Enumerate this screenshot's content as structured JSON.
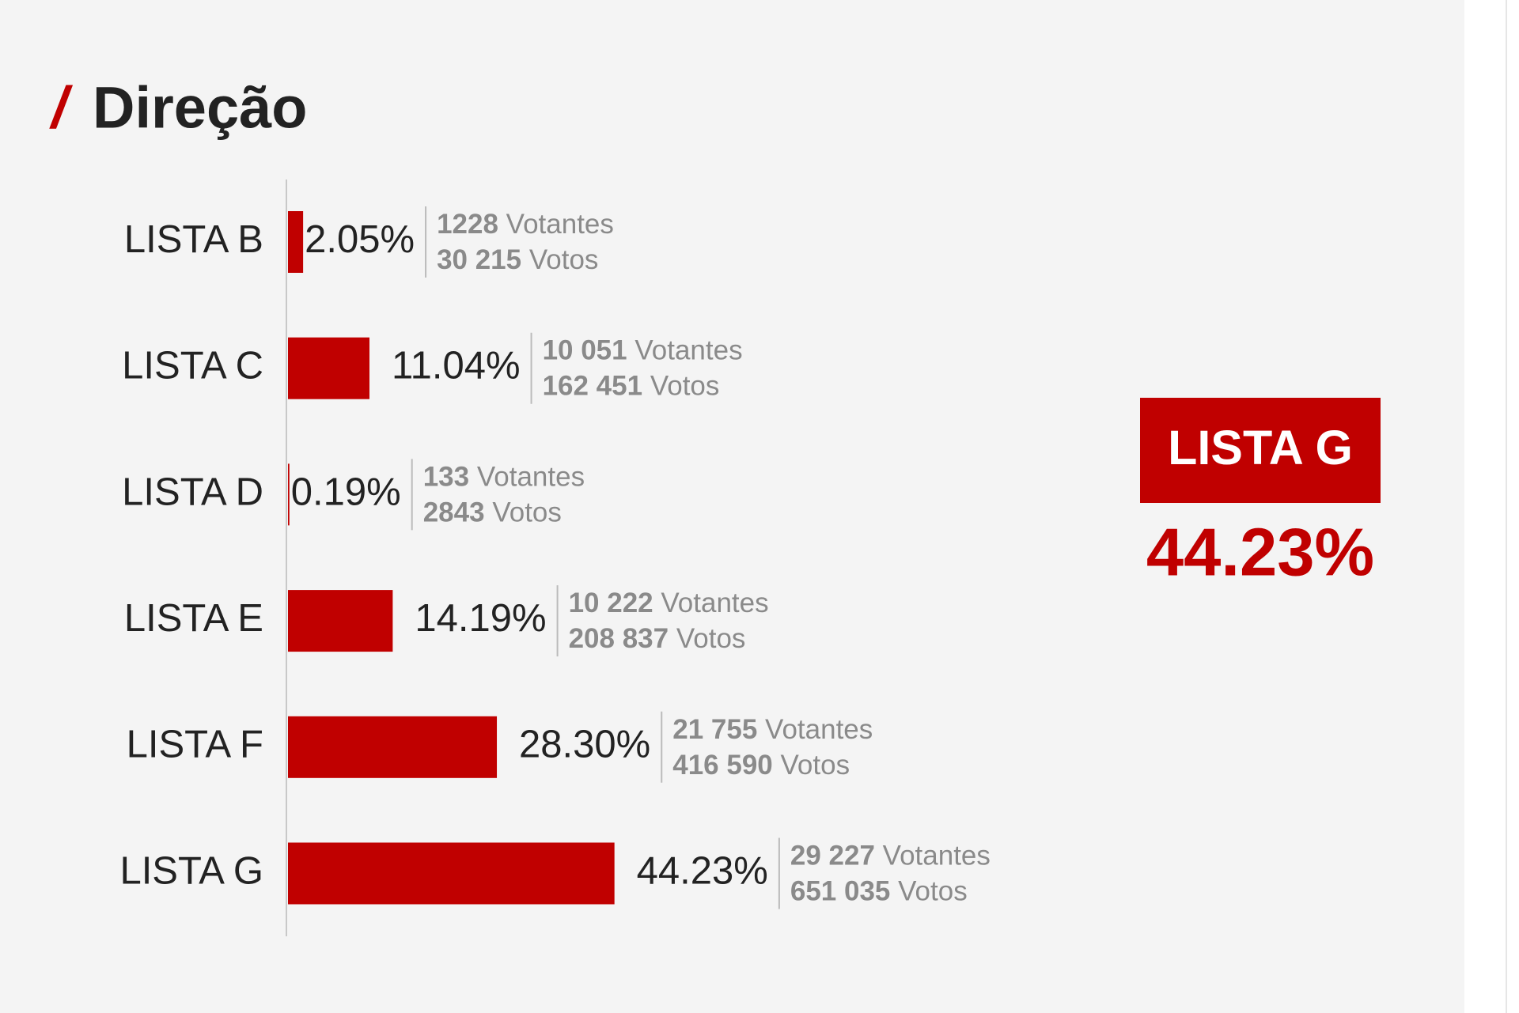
{
  "chart_data": {
    "type": "bar",
    "title_mark": "/",
    "title": "Direção",
    "color": "#c00000",
    "categories": [
      "LISTA B",
      "LISTA C",
      "LISTA D",
      "LISTA E",
      "LISTA F",
      "LISTA G"
    ],
    "values": [
      2.05,
      11.04,
      0.19,
      14.19,
      28.3,
      44.23
    ],
    "value_labels": [
      "2.05%",
      "11.04%",
      "0.19%",
      "14.19%",
      "28.30%",
      "44.23%"
    ],
    "votantes_label": "Votantes",
    "votos_label": "Votos",
    "votantes": [
      1228,
      {
        "value": 10051,
        "label": "10 051"
      },
      133,
      {
        "value": 10222,
        "label": "10 222"
      },
      {
        "value": 21755,
        "label": "21 755"
      },
      {
        "value": 29227,
        "label": "29 227"
      }
    ],
    "votos": [
      {
        "value": 30215,
        "label": "30 215"
      },
      {
        "value": 162451,
        "label": "162 451"
      },
      2843,
      {
        "value": 208837,
        "label": "208 837"
      },
      {
        "value": 416590,
        "label": "416 590"
      },
      {
        "value": 651035,
        "label": "651 035"
      }
    ],
    "winner": {
      "name": "LISTA G",
      "value": 44.23,
      "value_label": "44.23%"
    }
  }
}
